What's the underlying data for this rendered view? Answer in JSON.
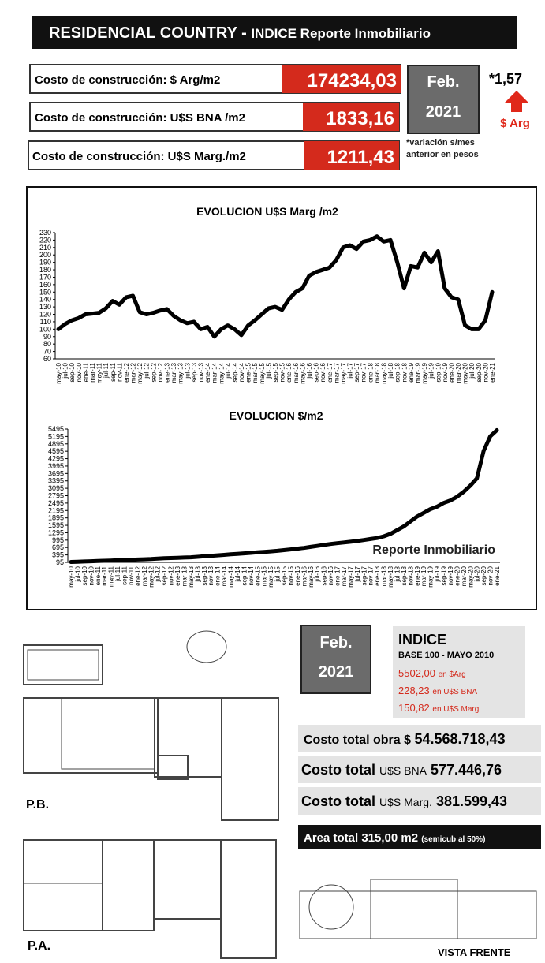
{
  "header": {
    "title": "RESIDENCIAL COUNTRY -",
    "subtitle": "INDICE Reporte Inmobiliario"
  },
  "costs": [
    {
      "label": "Costo de construcción: $ Arg/m2",
      "value": "174234,03"
    },
    {
      "label": "Costo de construcción: U$S BNA /m2",
      "value": "1833,16"
    },
    {
      "label": "Costo de construcción: U$S Marg./m2",
      "value": "1211,43"
    }
  ],
  "date": {
    "month": "Feb.",
    "year": "2021"
  },
  "variation": {
    "value": "*1,57",
    "unit": "$ Arg",
    "note_1": "*variación s/mes",
    "note_2": "anterior en pesos"
  },
  "chart_data": [
    {
      "type": "line",
      "title": "EVOLUCION U$S Marg /m2",
      "color": "#000000",
      "categories": [
        "may-10",
        "jul-10",
        "sep-10",
        "nov-10",
        "ene-11",
        "mar-11",
        "may-11",
        "jul-11",
        "sep-11",
        "nov-11",
        "ene-12",
        "mar-12",
        "may-12",
        "jul-12",
        "sep-12",
        "nov-12",
        "ene-13",
        "mar-13",
        "may-13",
        "jul-13",
        "sep-13",
        "nov-13",
        "ene-14",
        "mar-14",
        "may-14",
        "jul-14",
        "sep-14",
        "nov-14",
        "ene-15",
        "mar-15",
        "may-15",
        "jul-15",
        "sep-15",
        "nov-15",
        "ene-16",
        "mar-16",
        "may-16",
        "jul-16",
        "sep-16",
        "nov-16",
        "ene-17",
        "mar-17",
        "may-17",
        "jul-17",
        "sep-17",
        "nov-17",
        "ene-18",
        "mar-18",
        "may-18",
        "jul-18",
        "sep-18",
        "nov-18",
        "ene-19",
        "mar-19",
        "may-19",
        "jul-19",
        "sep-19",
        "nov-19",
        "ene-20",
        "mar-20",
        "may-20",
        "jul-20",
        "sep-20",
        "nov-20",
        "ene-21"
      ],
      "values": [
        100,
        107,
        112,
        115,
        120,
        121,
        122,
        128,
        138,
        133,
        143,
        145,
        123,
        120,
        122,
        125,
        127,
        118,
        112,
        108,
        110,
        100,
        103,
        90,
        100,
        105,
        100,
        92,
        105,
        112,
        120,
        128,
        130,
        126,
        140,
        150,
        155,
        172,
        177,
        180,
        183,
        193,
        210,
        213,
        208,
        218,
        220,
        225,
        218,
        220,
        190,
        155,
        185,
        183,
        203,
        190,
        205,
        155,
        143,
        140,
        105,
        100,
        100,
        112,
        150
      ],
      "ylim": [
        60,
        230
      ],
      "yticks": [
        60,
        70,
        80,
        90,
        100,
        110,
        120,
        130,
        140,
        150,
        160,
        170,
        180,
        190,
        200,
        210,
        220,
        230
      ]
    },
    {
      "type": "line",
      "title": "EVOLUCION $/m2",
      "color": "#000000",
      "annotation": "Reporte Inmobiliario",
      "categories": [
        "may-10",
        "jul-10",
        "sep-10",
        "nov-10",
        "ene-11",
        "mar-11",
        "may-11",
        "jul-11",
        "sep-11",
        "nov-11",
        "ene-12",
        "mar-12",
        "may-12",
        "jul-12",
        "sep-12",
        "nov-12",
        "ene-13",
        "mar-13",
        "may-13",
        "jul-13",
        "sep-13",
        "nov-13",
        "ene-14",
        "mar-14",
        "may-14",
        "jul-14",
        "sep-14",
        "nov-14",
        "ene-15",
        "mar-15",
        "may-15",
        "jul-15",
        "sep-15",
        "nov-15",
        "ene-16",
        "mar-16",
        "may-16",
        "jul-16",
        "sep-16",
        "nov-16",
        "ene-17",
        "mar-17",
        "may-17",
        "jul-17",
        "sep-17",
        "nov-17",
        "ene-18",
        "mar-18",
        "may-18",
        "jul-18",
        "sep-18",
        "nov-18",
        "ene-19",
        "mar-19",
        "may-19",
        "jul-19",
        "sep-19",
        "nov-19",
        "ene-20",
        "mar-20",
        "may-20",
        "jul-20",
        "sep-20",
        "nov-20",
        "ene-21"
      ],
      "values": [
        110,
        120,
        130,
        140,
        150,
        160,
        170,
        180,
        190,
        200,
        210,
        220,
        230,
        245,
        260,
        270,
        280,
        290,
        300,
        320,
        340,
        360,
        380,
        400,
        420,
        440,
        460,
        480,
        500,
        520,
        540,
        560,
        590,
        620,
        650,
        680,
        720,
        760,
        800,
        840,
        870,
        900,
        930,
        960,
        1000,
        1040,
        1080,
        1150,
        1250,
        1400,
        1550,
        1750,
        1950,
        2100,
        2250,
        2350,
        2500,
        2600,
        2750,
        2950,
        3200,
        3500,
        4600,
        5200,
        5450
      ],
      "ylim": [
        95,
        5495
      ],
      "yticks": [
        95,
        395,
        695,
        995,
        1295,
        1595,
        1895,
        2195,
        2495,
        2795,
        3095,
        3395,
        3695,
        3995,
        4295,
        4595,
        4895,
        5195,
        5495
      ]
    }
  ],
  "lower": {
    "month": "Feb.",
    "year": "2021",
    "index": {
      "title": "INDICE",
      "base": "BASE 100 - MAYO 2010",
      "lines": [
        {
          "value": "5502,00",
          "unit": "en $Arg"
        },
        {
          "value": "228,23",
          "unit": "en U$S BNA"
        },
        {
          "value": "150,82",
          "unit": "en U$S Marg"
        }
      ]
    },
    "totals": [
      {
        "label": "Costo total obra $",
        "value": "54.568.718,43"
      },
      {
        "label": "Costo total",
        "unit": "U$S BNA",
        "value": "577.446,76"
      },
      {
        "label": "Costo total",
        "unit": "U$S Marg.",
        "value": "381.599,43"
      }
    ],
    "area": {
      "label": "Area total",
      "value": "315,00 m2",
      "note": "(semicub al 50%)"
    },
    "plans": {
      "pb": "P.B.",
      "pa": "P.A.",
      "front": "VISTA FRENTE"
    }
  }
}
